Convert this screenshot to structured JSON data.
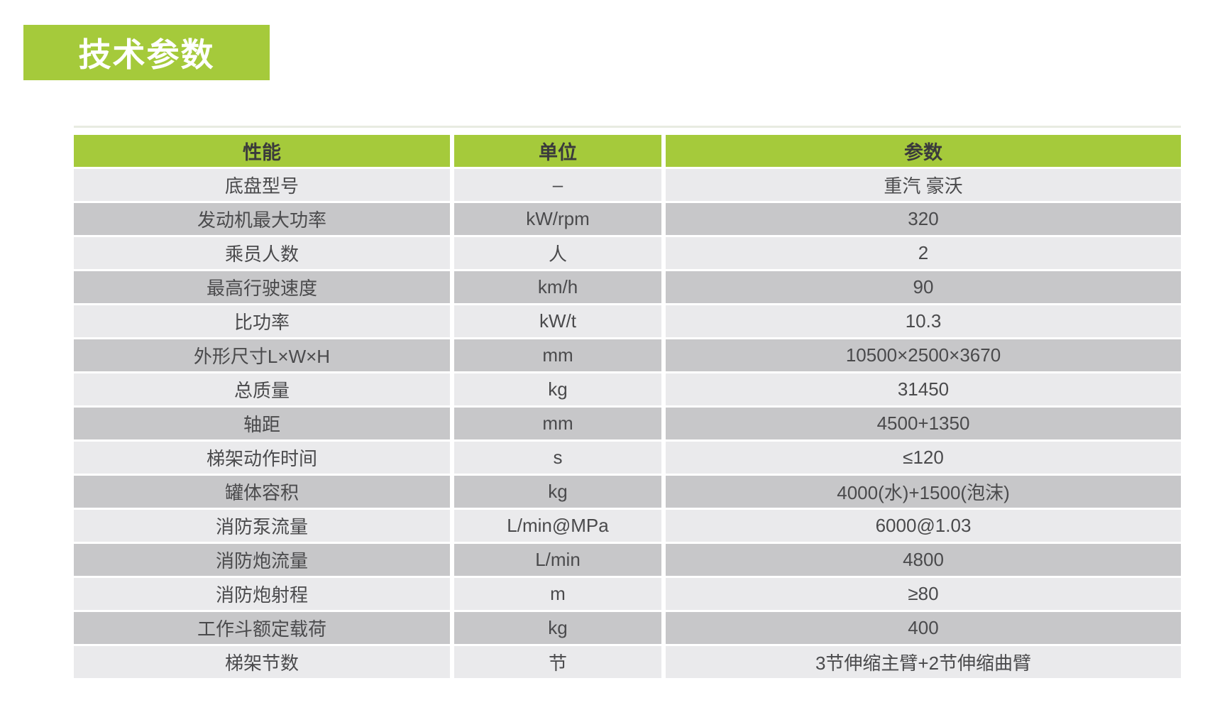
{
  "title": {
    "text": "技术参数",
    "bg": "#a5ca3b",
    "color": "#ffffff"
  },
  "table": {
    "colors": {
      "header_bg": "#a5ca3b",
      "row_light": "#eaeaec",
      "row_dark": "#c7c7c9",
      "header_text": "#3a3a3c",
      "cell_text": "#4a4a4c"
    },
    "header": {
      "feature": "性能",
      "unit": "单位",
      "value": "参数"
    },
    "rows": [
      {
        "feature": "底盘型号",
        "unit": "–",
        "value": "重汽 豪沃"
      },
      {
        "feature": "发动机最大功率",
        "unit": "kW/rpm",
        "value": "320"
      },
      {
        "feature": "乘员人数",
        "unit": "人",
        "value": "2"
      },
      {
        "feature": "最高行驶速度",
        "unit": "km/h",
        "value": "90"
      },
      {
        "feature": "比功率",
        "unit": "kW/t",
        "value": "10.3"
      },
      {
        "feature": "外形尺寸L×W×H",
        "unit": "mm",
        "value": "10500×2500×3670"
      },
      {
        "feature": "总质量",
        "unit": "kg",
        "value": "31450"
      },
      {
        "feature": "轴距",
        "unit": "mm",
        "value": "4500+1350"
      },
      {
        "feature": "梯架动作时间",
        "unit": "s",
        "value": "≤120"
      },
      {
        "feature": "罐体容积",
        "unit": "kg",
        "value": "4000(水)+1500(泡沫)"
      },
      {
        "feature": "消防泵流量",
        "unit": "L/min@MPa",
        "value": "6000@1.03"
      },
      {
        "feature": "消防炮流量",
        "unit": "L/min",
        "value": "4800"
      },
      {
        "feature": "消防炮射程",
        "unit": "m",
        "value": "≥80"
      },
      {
        "feature": "工作斗额定载荷",
        "unit": "kg",
        "value": "400"
      },
      {
        "feature": "梯架节数",
        "unit": "节",
        "value": "3节伸缩主臂+2节伸缩曲臂"
      }
    ]
  }
}
